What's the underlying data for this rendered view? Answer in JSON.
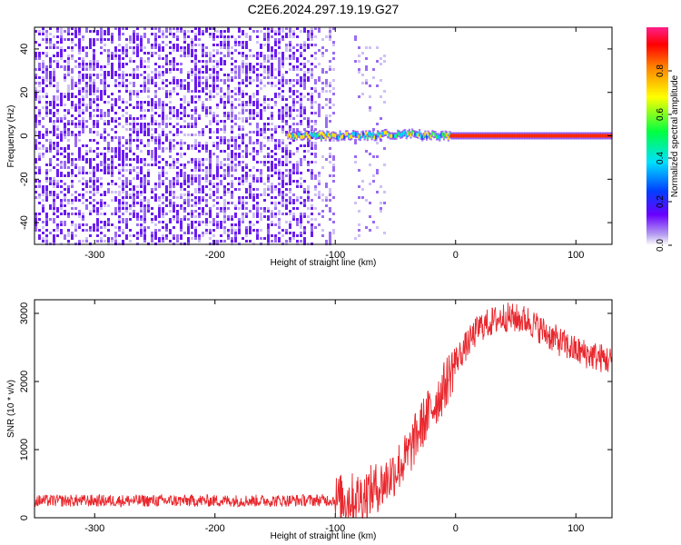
{
  "chart_data": [
    {
      "type": "heatmap",
      "title": "C2E6.2024.297.19.19.G27",
      "xlabel": "Height of straight line (km)",
      "ylabel": "Frequency (Hz)",
      "xlim": [
        -350,
        130
      ],
      "ylim": [
        -50,
        50
      ],
      "xticks": [
        -300,
        -200,
        -100,
        0,
        100
      ],
      "yticks": [
        -40,
        -20,
        0,
        20,
        40
      ],
      "colorbar": {
        "label": "Normalized spectral amplitude",
        "range": [
          0.0,
          1.0
        ],
        "ticks": [
          "0.0",
          "0.2",
          "0.4",
          "0.6",
          "0.8"
        ]
      },
      "features": {
        "noise_region_height_km": [
          -350,
          -100
        ],
        "sparse_noise_band_km": [
          -85,
          -60
        ],
        "signal_line_freq_hz": 0,
        "signal_strong_from_km": -140,
        "signal_saturated_from_km": -5
      }
    },
    {
      "type": "line",
      "xlabel": "Height of straight line (km)",
      "ylabel": "SNR (10 * v/v)",
      "xlim": [
        -350,
        130
      ],
      "ylim": [
        0,
        3200
      ],
      "xticks": [
        -300,
        -200,
        -100,
        0,
        100
      ],
      "yticks": [
        0,
        1000,
        2000,
        3000
      ],
      "series": [
        {
          "color": "#e8282e",
          "x": [
            -350,
            -300,
            -250,
            -200,
            -150,
            -100,
            -80,
            -60,
            -40,
            -30,
            -20,
            -10,
            0,
            20,
            40,
            60,
            80,
            100,
            130
          ],
          "y": [
            250,
            250,
            250,
            250,
            250,
            260,
            300,
            500,
            900,
            1300,
            1600,
            1900,
            2300,
            2800,
            2950,
            2900,
            2650,
            2450,
            2300
          ]
        }
      ]
    }
  ]
}
